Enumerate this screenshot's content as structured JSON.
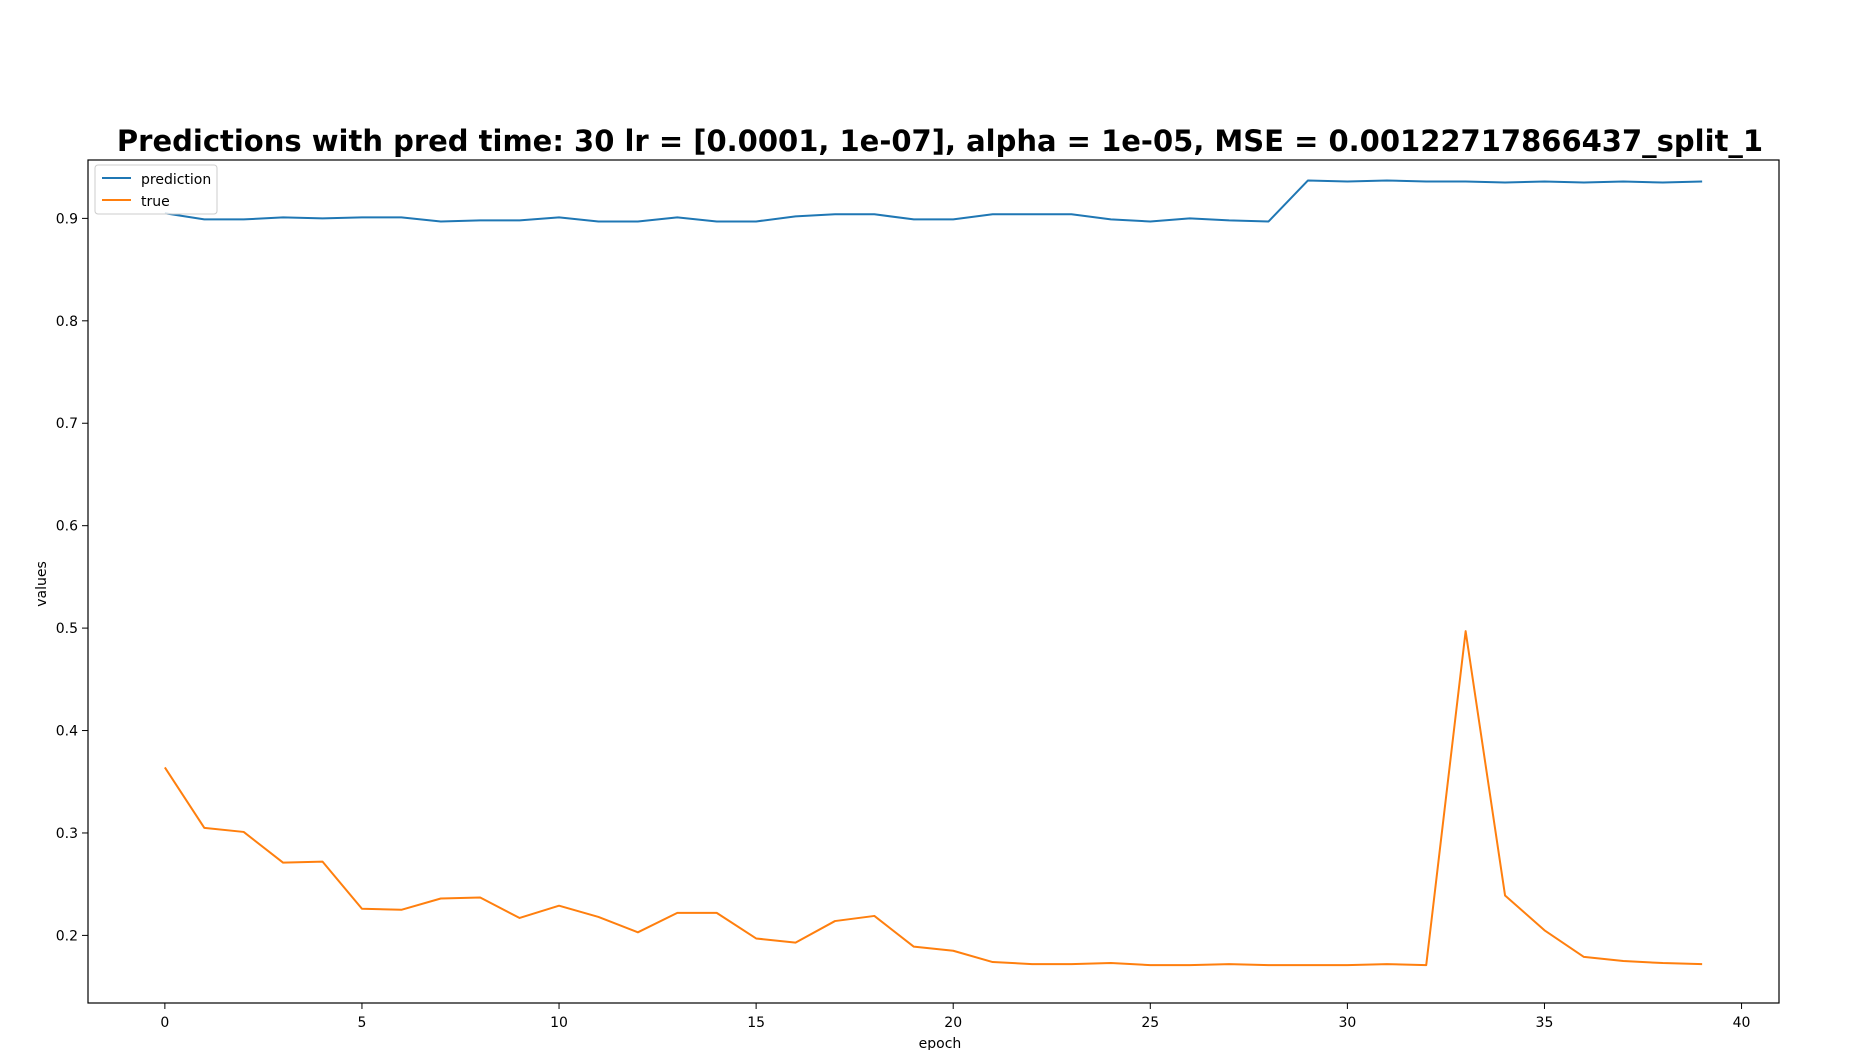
{
  "chart_data": {
    "type": "line",
    "title": "Predictions with pred time: 30 lr = [0.0001, 1e-07], alpha = 1e-05, MSE = 0.00122717866437_split_1",
    "xlabel": "epoch",
    "ylabel": "values",
    "xlim": [
      -1.95,
      40.95
    ],
    "ylim": [
      0.134,
      0.957
    ],
    "xticks": [
      0,
      5,
      10,
      15,
      20,
      25,
      30,
      35,
      40
    ],
    "xtick_labels": [
      "0",
      "5",
      "10",
      "15",
      "20",
      "25",
      "30",
      "35",
      "40"
    ],
    "yticks": [
      0.2,
      0.3,
      0.4,
      0.5,
      0.6,
      0.7,
      0.8,
      0.9
    ],
    "ytick_labels": [
      "0.2",
      "0.3",
      "0.4",
      "0.5",
      "0.6",
      "0.7",
      "0.8",
      "0.9"
    ],
    "grid": false,
    "legend_position": "top-left",
    "x": [
      0,
      1,
      2,
      3,
      4,
      5,
      6,
      7,
      8,
      9,
      10,
      11,
      12,
      13,
      14,
      15,
      16,
      17,
      18,
      19,
      20,
      21,
      22,
      23,
      24,
      25,
      26,
      27,
      28,
      29,
      30,
      31,
      32,
      33,
      34,
      35,
      36,
      37,
      38,
      39
    ],
    "series": [
      {
        "name": "prediction",
        "color": "#1f77b4",
        "values": [
          0.905,
          0.899,
          0.899,
          0.901,
          0.9,
          0.901,
          0.901,
          0.897,
          0.898,
          0.898,
          0.901,
          0.897,
          0.897,
          0.901,
          0.897,
          0.897,
          0.902,
          0.904,
          0.904,
          0.899,
          0.899,
          0.904,
          0.904,
          0.904,
          0.899,
          0.897,
          0.9,
          0.898,
          0.897,
          0.937,
          0.936,
          0.937,
          0.936,
          0.936,
          0.935,
          0.936,
          0.935,
          0.936,
          0.935,
          0.936
        ]
      },
      {
        "name": "true",
        "color": "#ff7f0e",
        "values": [
          0.364,
          0.305,
          0.301,
          0.271,
          0.272,
          0.226,
          0.225,
          0.236,
          0.237,
          0.217,
          0.229,
          0.218,
          0.203,
          0.222,
          0.222,
          0.197,
          0.193,
          0.214,
          0.219,
          0.189,
          0.185,
          0.174,
          0.172,
          0.172,
          0.173,
          0.171,
          0.171,
          0.172,
          0.171,
          0.171,
          0.171,
          0.172,
          0.171,
          0.497,
          0.239,
          0.205,
          0.179,
          0.175,
          0.173,
          0.172
        ]
      }
    ]
  }
}
